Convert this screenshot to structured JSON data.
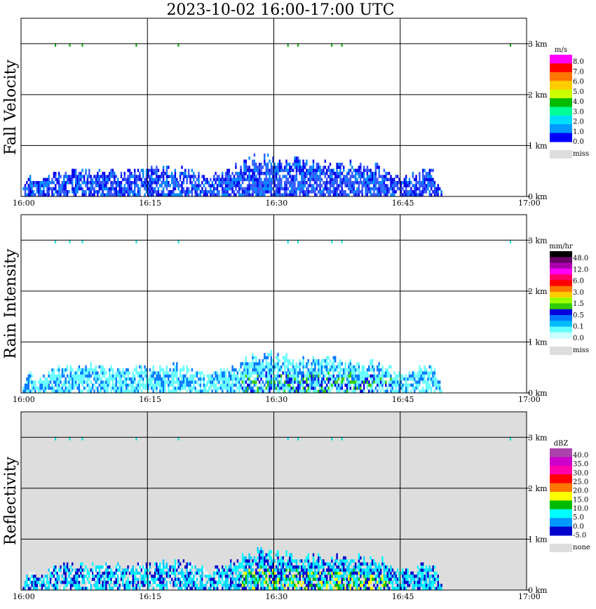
{
  "title": "2023-10-02   16:00-17:00 UTC",
  "chart_data": {
    "type": "heatmap",
    "time_ticks": [
      "16:00",
      "16:15",
      "16:30",
      "16:45",
      "17:00"
    ],
    "height_ticks": [
      "0 km",
      "1 km",
      "2 km",
      "3 km"
    ],
    "x_range_minutes": [
      0,
      60
    ],
    "y_range_km": [
      0,
      3.5
    ],
    "grid": true,
    "panels": [
      {
        "name": "Fall Velocity",
        "unit": "m/s",
        "background": "#ffffff",
        "legend_colors": [
          "#ff00ff",
          "#ff0000",
          "#ff7700",
          "#ffcc00",
          "#ccff00",
          "#00bb00",
          "#00ff99",
          "#00ddff",
          "#0099ff",
          "#0000ff"
        ],
        "legend_labels": [
          "8.0",
          "7.0",
          "6.0",
          "5.0",
          "4.0",
          "3.0",
          "2.0",
          "1.0",
          "0.0"
        ],
        "miss_label": "miss",
        "data_colors": [
          "#0000ee",
          "#0088ff",
          "#3355ff",
          "#00ddff"
        ]
      },
      {
        "name": "Rain Intensity",
        "unit": "mm/hr",
        "background": "#ffffff",
        "legend_colors": [
          "#000000",
          "#660066",
          "#aa00aa",
          "#ff00ff",
          "#ff0066",
          "#ff0000",
          "#ff7700",
          "#ffcc00",
          "#99ff00",
          "#33cc00",
          "#0000dd",
          "#0077ff",
          "#00bbff",
          "#66ffff",
          "#ccffff"
        ],
        "legend_labels": [
          "48.0",
          "12.0",
          "6.0",
          "3.0",
          "1.5",
          "0.5",
          "0.1",
          "0.0"
        ],
        "miss_label": "miss",
        "data_colors": [
          "#66ffff",
          "#66ffff",
          "#0077ff",
          "#0000dd",
          "#33cc00",
          "#ffff00"
        ]
      },
      {
        "name": "Reflectivity",
        "unit": "dBZ",
        "background": "#dddddd",
        "legend_colors": [
          "#aa44aa",
          "#cc00cc",
          "#ff00aa",
          "#ff0000",
          "#ff7700",
          "#ffff00",
          "#00bb00",
          "#00ffff",
          "#0099ff",
          "#0000cc"
        ],
        "legend_labels": [
          "40.0",
          "35.0",
          "30.0",
          "25.0",
          "20.0",
          "15.0",
          "10.0",
          "5.0",
          "0.0",
          "-5.0"
        ],
        "miss_label": "none",
        "data_colors": [
          "#00ffff",
          "#00ccff",
          "#0000cc",
          "#00bb00",
          "#ffff00",
          "#ffffff"
        ]
      }
    ]
  }
}
